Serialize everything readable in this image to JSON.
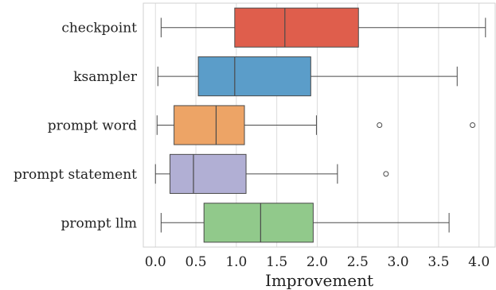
{
  "chart_data": {
    "type": "boxplot",
    "orientation": "horizontal",
    "title": "",
    "xlabel": "Improvement",
    "ylabel": "",
    "xlim": [
      -0.15,
      4.2
    ],
    "xticks": [
      0.0,
      0.5,
      1.0,
      1.5,
      2.0,
      2.5,
      3.0,
      3.5,
      4.0
    ],
    "xtick_labels": [
      "0.0",
      "0.5",
      "1.0",
      "1.5",
      "2.0",
      "2.5",
      "3.0",
      "3.5",
      "4.0"
    ],
    "grid": "vertical",
    "categories": [
      "checkpoint",
      "ksampler",
      "prompt_word",
      "prompt_statement",
      "prompt_llm"
    ],
    "category_labels": [
      "checkpoint",
      "ksampler",
      "prompt word",
      "prompt statement",
      "prompt llm"
    ],
    "boxes": [
      {
        "name": "checkpoint",
        "whisker_low": 0.07,
        "q1": 0.98,
        "median": 1.6,
        "q3": 2.51,
        "whisker_high": 4.08,
        "outliers": [],
        "color": "#df5e4c"
      },
      {
        "name": "ksampler",
        "whisker_low": 0.03,
        "q1": 0.53,
        "median": 0.98,
        "q3": 1.92,
        "whisker_high": 3.73,
        "outliers": [],
        "color": "#5b9dc9"
      },
      {
        "name": "prompt_word",
        "whisker_low": 0.02,
        "q1": 0.23,
        "median": 0.75,
        "q3": 1.1,
        "whisker_high": 1.99,
        "outliers": [
          2.77,
          3.92
        ],
        "color": "#eda466"
      },
      {
        "name": "prompt_statement",
        "whisker_low": 0.0,
        "q1": 0.18,
        "median": 0.47,
        "q3": 1.12,
        "whisker_high": 2.25,
        "outliers": [
          2.85
        ],
        "color": "#b1afd4"
      },
      {
        "name": "prompt_llm",
        "whisker_low": 0.07,
        "q1": 0.6,
        "median": 1.3,
        "q3": 1.95,
        "whisker_high": 3.63,
        "outliers": [],
        "color": "#91c98b"
      }
    ]
  }
}
